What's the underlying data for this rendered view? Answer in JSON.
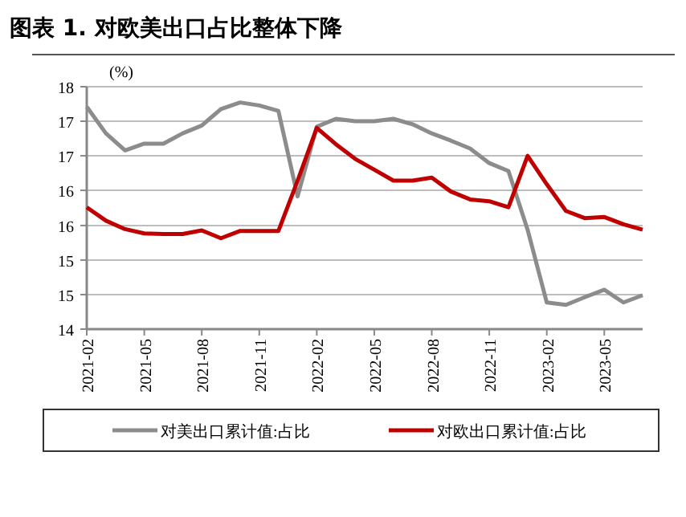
{
  "chart_data": {
    "type": "line",
    "title": "图表 1. 对欧美出口占比整体下降",
    "ylabel": "(%)",
    "x": [
      "2021-02",
      "2021-03",
      "2021-04",
      "2021-05",
      "2021-06",
      "2021-07",
      "2021-08",
      "2021-09",
      "2021-10",
      "2021-11",
      "2021-12",
      "2022-01",
      "2022-02",
      "2022-03",
      "2022-04",
      "2022-05",
      "2022-06",
      "2022-07",
      "2022-08",
      "2022-09",
      "2022-10",
      "2022-11",
      "2022-12",
      "2023-01",
      "2023-02",
      "2023-03",
      "2023-04",
      "2023-05",
      "2023-06",
      "2023-07"
    ],
    "series": [
      {
        "name": "对美出口累计值:占比",
        "color": "#8c8c8c",
        "values": [
          17.67,
          17.23,
          16.95,
          17.06,
          17.06,
          17.23,
          17.36,
          17.63,
          17.74,
          17.69,
          17.6,
          16.19,
          17.34,
          17.47,
          17.43,
          17.43,
          17.47,
          17.38,
          17.23,
          17.11,
          16.98,
          16.74,
          16.61,
          15.64,
          14.44,
          14.4,
          14.53,
          14.65,
          14.44,
          14.56
        ]
      },
      {
        "name": "对欧出口累计值:占比",
        "color": "#c00000",
        "values": [
          16.01,
          15.79,
          15.65,
          15.58,
          15.57,
          15.57,
          15.63,
          15.5,
          15.62,
          15.62,
          15.62,
          16.45,
          17.32,
          17.05,
          16.81,
          16.63,
          16.45,
          16.45,
          16.5,
          16.27,
          16.14,
          16.11,
          16.01,
          16.86,
          16.39,
          15.95,
          15.83,
          15.85,
          15.73,
          15.64
        ]
      }
    ],
    "xlim": [
      "2021-02",
      "2023-07"
    ],
    "xticks": [
      "2021-02",
      "2021-05",
      "2021-08",
      "2021-11",
      "2022-02",
      "2022-05",
      "2022-08",
      "2022-11",
      "2023-02",
      "2023-05"
    ],
    "ylim": [
      14,
      18
    ],
    "yticks": [
      {
        "value": 14,
        "label": "14"
      },
      {
        "value": 14.57,
        "label": "15"
      },
      {
        "value": 15.14,
        "label": "15"
      },
      {
        "value": 15.71,
        "label": "16"
      },
      {
        "value": 16.29,
        "label": "16"
      },
      {
        "value": 16.86,
        "label": "17"
      },
      {
        "value": 17.43,
        "label": "17"
      },
      {
        "value": 18,
        "label": "18"
      }
    ],
    "grid": "y",
    "legend": "bottom",
    "line_style": "solid"
  }
}
